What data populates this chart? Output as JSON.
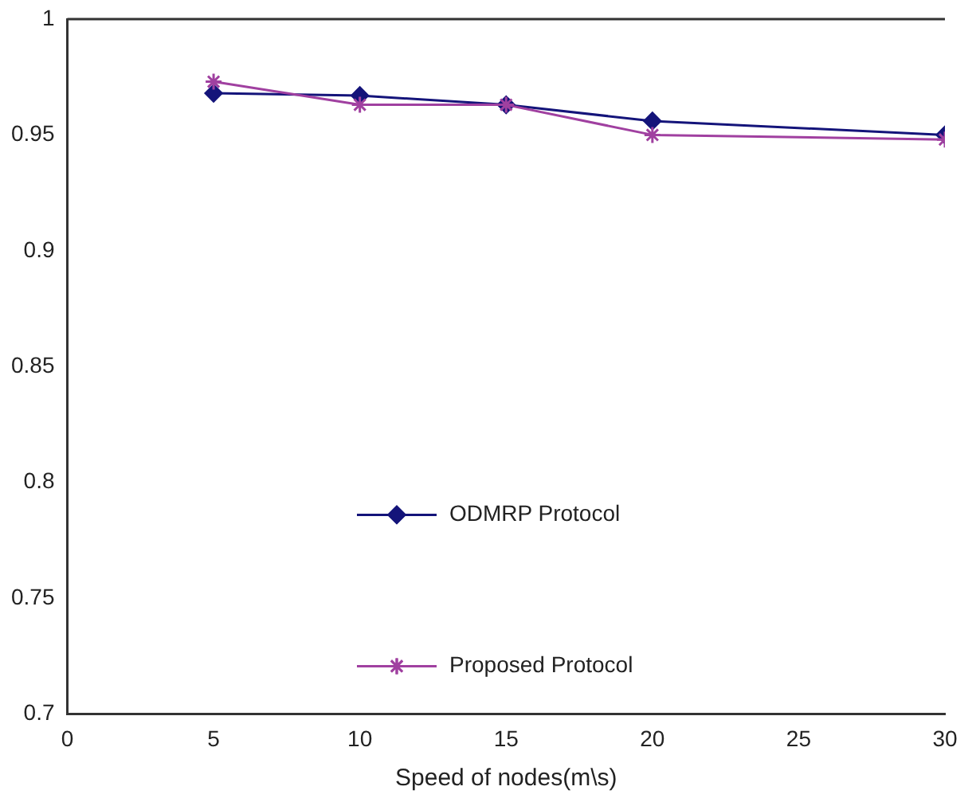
{
  "chart_data": {
    "type": "line",
    "xlabel": "Speed of nodes(m\\s)",
    "x": [
      5,
      10,
      15,
      20,
      30
    ],
    "series": [
      {
        "name": "ODMRP Protocol",
        "color": "#14147a",
        "marker": "diamond",
        "values": [
          0.968,
          0.967,
          0.963,
          0.956,
          0.95
        ]
      },
      {
        "name": "Proposed Protocol",
        "color": "#a040a0",
        "marker": "cross",
        "values": [
          0.973,
          0.963,
          0.963,
          0.95,
          0.948
        ]
      }
    ],
    "xlim": [
      0,
      30
    ],
    "xticks": [
      0,
      5,
      10,
      15,
      20,
      25,
      30
    ],
    "ylim": [
      0.7,
      1
    ],
    "yticks": [
      0.7,
      0.75,
      0.8,
      0.85,
      0.9,
      0.95,
      1
    ],
    "grid": false,
    "legend": "bottom",
    "line_style": "solid"
  }
}
